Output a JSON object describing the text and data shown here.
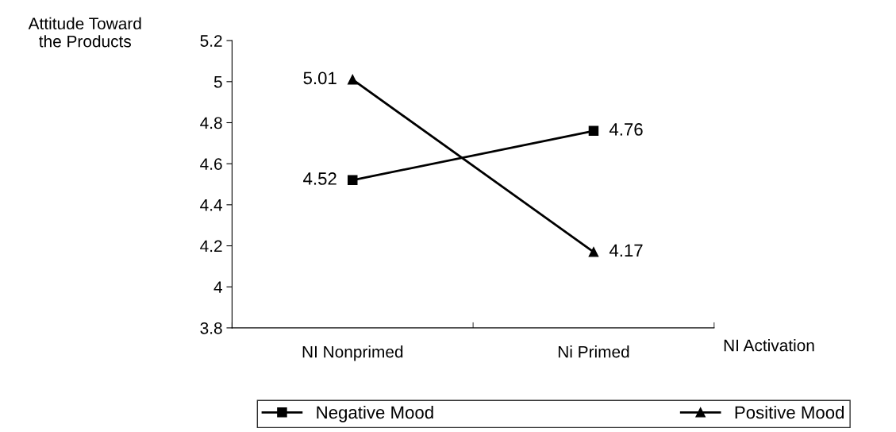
{
  "chart_data": {
    "type": "line",
    "ylabel": "Attitude Toward\nthe Products",
    "xlabel": "NI Activation",
    "categories": [
      "NI Nonprimed",
      "Ni Primed"
    ],
    "series": [
      {
        "name": "Negative Mood",
        "color": "#000000",
        "values": [
          4.52,
          4.76
        ],
        "marker": "square"
      },
      {
        "name": "Positive Mood",
        "color": "#000000",
        "values": [
          5.01,
          4.17
        ],
        "marker": "triangle"
      }
    ],
    "ylim": [
      3.8,
      5.2
    ],
    "yticks": [
      3.8,
      4,
      4.2,
      4.4,
      4.6,
      4.8,
      5,
      5.2
    ],
    "data_labels": true,
    "legend": "bottom",
    "grid": false,
    "line_style": "solid"
  }
}
